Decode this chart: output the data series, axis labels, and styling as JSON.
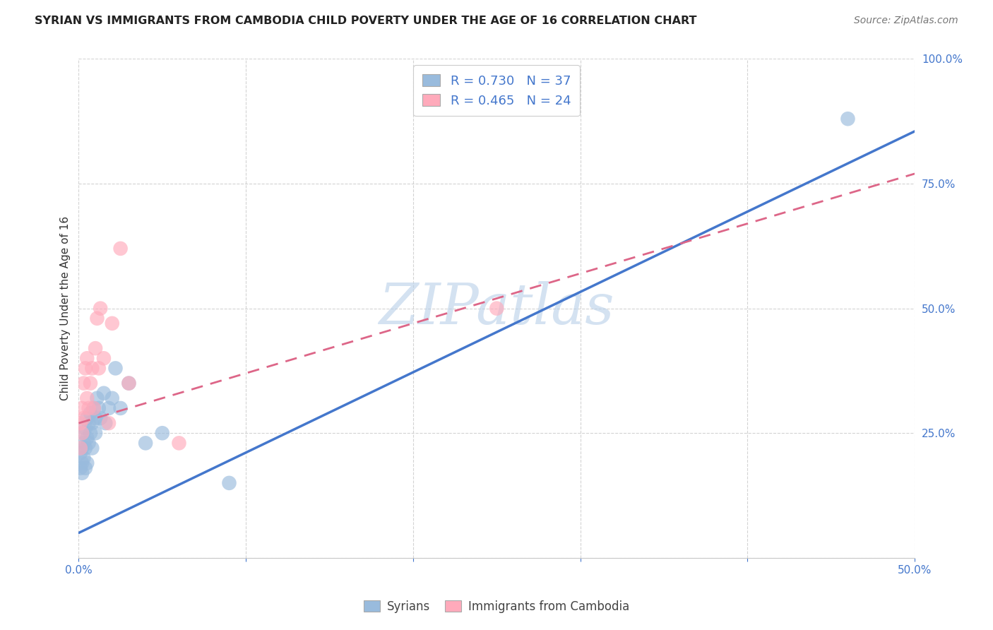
{
  "title": "SYRIAN VS IMMIGRANTS FROM CAMBODIA CHILD POVERTY UNDER THE AGE OF 16 CORRELATION CHART",
  "source": "Source: ZipAtlas.com",
  "ylabel": "Child Poverty Under the Age of 16",
  "xlim": [
    0.0,
    0.5
  ],
  "ylim": [
    0.0,
    1.0
  ],
  "xticks": [
    0.0,
    0.1,
    0.2,
    0.3,
    0.4,
    0.5
  ],
  "yticks": [
    0.0,
    0.25,
    0.5,
    0.75,
    1.0
  ],
  "xtick_labels": [
    "0.0%",
    "",
    "",
    "",
    "",
    "50.0%"
  ],
  "ytick_labels": [
    "",
    "25.0%",
    "50.0%",
    "75.0%",
    "100.0%"
  ],
  "background_color": "#ffffff",
  "grid_color": "#c8c8c8",
  "legend_label1": "Syrians",
  "legend_label2": "Immigrants from Cambodia",
  "blue_scatter_color": "#99bbdd",
  "pink_scatter_color": "#ffaabb",
  "blue_line_color": "#4477cc",
  "pink_line_color": "#dd6688",
  "axis_color": "#4477cc",
  "blue_trendline": [
    0.05,
    0.855
  ],
  "pink_trendline": [
    0.27,
    0.77
  ],
  "syrians_x": [
    0.001,
    0.001,
    0.002,
    0.002,
    0.002,
    0.003,
    0.003,
    0.003,
    0.004,
    0.004,
    0.004,
    0.005,
    0.005,
    0.005,
    0.006,
    0.006,
    0.007,
    0.007,
    0.008,
    0.008,
    0.009,
    0.01,
    0.01,
    0.011,
    0.012,
    0.013,
    0.015,
    0.016,
    0.018,
    0.02,
    0.022,
    0.025,
    0.03,
    0.04,
    0.05,
    0.09,
    0.46
  ],
  "syrians_y": [
    0.18,
    0.21,
    0.17,
    0.19,
    0.22,
    0.2,
    0.23,
    0.25,
    0.18,
    0.22,
    0.26,
    0.19,
    0.24,
    0.28,
    0.23,
    0.27,
    0.25,
    0.29,
    0.22,
    0.27,
    0.3,
    0.25,
    0.28,
    0.32,
    0.3,
    0.28,
    0.33,
    0.27,
    0.3,
    0.32,
    0.38,
    0.3,
    0.35,
    0.23,
    0.25,
    0.15,
    0.88
  ],
  "cambodia_x": [
    0.001,
    0.001,
    0.002,
    0.002,
    0.003,
    0.003,
    0.004,
    0.005,
    0.005,
    0.006,
    0.007,
    0.008,
    0.009,
    0.01,
    0.011,
    0.012,
    0.013,
    0.015,
    0.018,
    0.02,
    0.025,
    0.03,
    0.06,
    0.25
  ],
  "cambodia_y": [
    0.22,
    0.27,
    0.25,
    0.3,
    0.35,
    0.28,
    0.38,
    0.32,
    0.4,
    0.3,
    0.35,
    0.38,
    0.3,
    0.42,
    0.48,
    0.38,
    0.5,
    0.4,
    0.27,
    0.47,
    0.62,
    0.35,
    0.23,
    0.5
  ],
  "watermark_text": "ZIPatlas",
  "watermark_color": "#b8cfe8",
  "watermark_alpha": 0.6
}
